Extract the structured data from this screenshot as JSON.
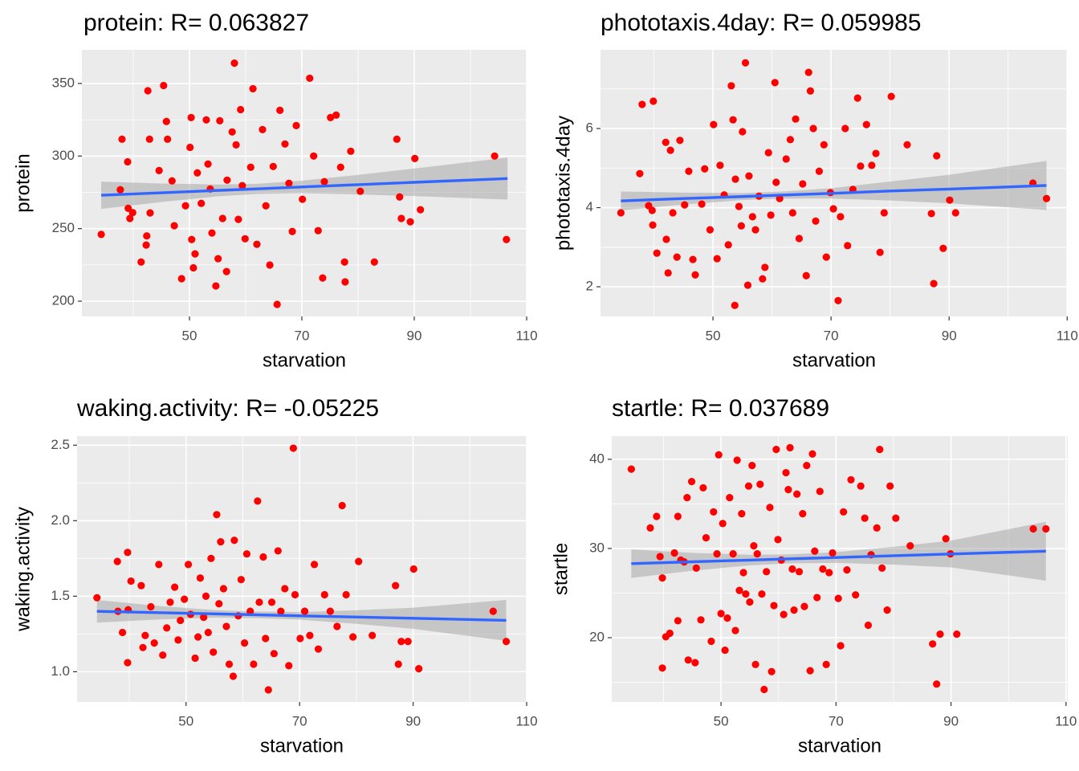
{
  "chart_data": [
    {
      "type": "scatter",
      "title": "protein: R= 0.063827",
      "xlabel": "starvation",
      "ylabel": "protein",
      "color": "#ff0000",
      "xlim": [
        30.86,
        110
      ],
      "xticks": [
        50,
        70,
        90,
        110
      ],
      "ylim": [
        189.5,
        373.2
      ],
      "yticks": [
        200,
        250,
        300,
        350
      ],
      "grid": true,
      "x": [
        34.3,
        37.7,
        38,
        39,
        39.1,
        39.4,
        39.9,
        41.4,
        42.3,
        42.4,
        42.6,
        42.9,
        43,
        44.6,
        45.4,
        45.9,
        46.1,
        46.9,
        47.3,
        48.6,
        49.3,
        50.1,
        50.3,
        50.4,
        51,
        50.7,
        51.4,
        52.1,
        53,
        53.3,
        53.7,
        54,
        54.7,
        55.1,
        55.4,
        55.9,
        56.6,
        56.7,
        57.6,
        58,
        58.3,
        58.7,
        59.1,
        59.4,
        59.9,
        60.9,
        61.3,
        62,
        63,
        63.6,
        64.3,
        64.9,
        65.6,
        66.1,
        67,
        67.7,
        68.3,
        69,
        70.1,
        71.4,
        72.1,
        72.9,
        73.7,
        74,
        75.1,
        76.1,
        76.9,
        77.6,
        77.7,
        78.7,
        80.4,
        82.9,
        86.9,
        87.4,
        87.7,
        89.3,
        90.1,
        91.1,
        104.3,
        106.4
      ],
      "values": [
        246,
        276.8,
        311.6,
        296,
        264,
        257,
        261,
        227,
        238.7,
        245,
        345,
        311.6,
        260.8,
        290,
        348.6,
        323.8,
        311.6,
        282.9,
        252,
        215.5,
        265.7,
        306,
        326.5,
        242.5,
        232.6,
        223,
        288.4,
        267.4,
        324.9,
        294.5,
        277.3,
        247,
        210.5,
        229.3,
        324.3,
        257,
        220.4,
        283.4,
        316.6,
        364,
        307.7,
        256.4,
        332,
        279.6,
        243,
        292.3,
        346.4,
        239.2,
        318.2,
        265.7,
        224.9,
        292.8,
        197.8,
        331.5,
        308.3,
        281.2,
        248,
        321,
        270.2,
        353.6,
        300,
        248.6,
        216,
        282.3,
        326.5,
        328.2,
        292.3,
        227,
        213.3,
        303.3,
        275.7,
        227,
        311.6,
        271.8,
        257,
        254.7,
        298.3,
        263,
        300,
        242.5
      ],
      "fit": {
        "color": "#3366ff",
        "band_color": "#999999",
        "x": [
          34.3,
          45,
          55,
          62,
          70,
          80,
          90,
          106.6
        ],
        "values": [
          273,
          274.7,
          276.3,
          277.4,
          278.7,
          280.3,
          281.9,
          284.5
        ],
        "lower": [
          263.6,
          268.3,
          272.2,
          273.9,
          274.4,
          273.6,
          272.4,
          270
        ],
        "upper": [
          282.4,
          281.1,
          280.4,
          280.9,
          283,
          287,
          291.4,
          299
        ]
      }
    },
    {
      "type": "scatter",
      "title": "phototaxis.4day: R= 0.059985",
      "xlabel": "starvation",
      "ylabel": "phototaxis.4day",
      "color": "#ff0000",
      "xlim": [
        30.95,
        110.1
      ],
      "xticks": [
        50,
        70,
        90,
        110
      ],
      "ylim": [
        1.25,
        7.99
      ],
      "yticks": [
        2,
        4,
        6
      ],
      "grid": true,
      "x": [
        34.4,
        37.6,
        38,
        39.1,
        39.7,
        39.8,
        39.9,
        40.5,
        42,
        42.1,
        42.4,
        42.8,
        43.2,
        43.9,
        44.4,
        45.2,
        45.9,
        46.6,
        47,
        48.1,
        48.6,
        49.5,
        50.1,
        50.7,
        51.2,
        51.9,
        52.6,
        53.1,
        53.4,
        53.8,
        53.7,
        54.4,
        54.8,
        55,
        55.5,
        55.9,
        56.1,
        56.7,
        57.2,
        57.8,
        58.4,
        58.8,
        59.4,
        59.8,
        60.5,
        60.7,
        61.3,
        62.4,
        63.1,
        63.5,
        64,
        64.6,
        65.2,
        65.8,
        66.2,
        66.5,
        67,
        67.4,
        68,
        68.8,
        69.2,
        69.9,
        70.4,
        71.2,
        71.6,
        72.4,
        72.8,
        73.7,
        74.5,
        75,
        76,
        76.9,
        77.6,
        78.3,
        79,
        80.2,
        82.9,
        87,
        87.4,
        87.9,
        89,
        90.1,
        91.1,
        104.2,
        106.5
      ],
      "values": [
        3.87,
        4.86,
        6.61,
        4.05,
        3.93,
        3.56,
        6.69,
        2.85,
        5.65,
        3.2,
        2.35,
        5.45,
        3.87,
        2.75,
        5.7,
        4.07,
        4.92,
        2.69,
        2.3,
        4.09,
        4.98,
        3.44,
        6.1,
        2.71,
        5.07,
        4.32,
        3.06,
        7.08,
        6.22,
        4.72,
        1.53,
        4.03,
        3.54,
        5.92,
        7.66,
        2.04,
        4.8,
        3.77,
        3.44,
        4.29,
        2.2,
        2.49,
        5.39,
        3.81,
        7.16,
        4.64,
        4.23,
        5.23,
        5.72,
        3.87,
        6.24,
        3.22,
        4.6,
        2.28,
        7.42,
        6.95,
        6,
        3.66,
        4.92,
        5.59,
        2.75,
        4.38,
        3.97,
        1.65,
        3.77,
        6,
        3.04,
        4.46,
        6.77,
        5.05,
        6.1,
        5.07,
        5.37,
        2.87,
        3.87,
        6.81,
        5.59,
        3.85,
        2.08,
        5.31,
        2.97,
        4.19,
        3.87,
        4.62,
        4.23
      ],
      "fit": {
        "color": "#3366ff",
        "band_color": "#999999",
        "x": [
          34.4,
          45,
          55,
          62,
          70,
          80,
          90,
          106.5
        ],
        "values": [
          4.17,
          4.23,
          4.28,
          4.32,
          4.36,
          4.42,
          4.47,
          4.56
        ],
        "lower": [
          3.93,
          4.08,
          4.19,
          4.23,
          4.23,
          4.18,
          4.11,
          3.94
        ],
        "upper": [
          4.41,
          4.38,
          4.37,
          4.41,
          4.49,
          4.66,
          4.83,
          5.18
        ]
      }
    },
    {
      "type": "scatter",
      "title": "waking.activity: R= -0.05225",
      "xlabel": "starvation",
      "ylabel": "waking.activity",
      "color": "#ff0000",
      "xlim": [
        30.8,
        110
      ],
      "xticks": [
        50,
        70,
        90,
        110
      ],
      "ylim": [
        0.8,
        2.56
      ],
      "yticks": [
        {
          "value": 1,
          "label": "1.0"
        },
        1.5,
        {
          "value": 2,
          "label": "2.0"
        },
        2.5
      ],
      "grid": true,
      "x": [
        34.3,
        37.9,
        38,
        38.8,
        39.7,
        39.8,
        39.7,
        40.3,
        42.1,
        42.4,
        42.8,
        43.8,
        44.4,
        45.2,
        45.9,
        46.6,
        47.2,
        48,
        48.6,
        49,
        49.7,
        50.4,
        50.8,
        51.6,
        52.1,
        52.5,
        53.1,
        53.5,
        53.9,
        54.4,
        54.8,
        55.4,
        55.8,
        56.1,
        56.6,
        57.1,
        57.6,
        58.3,
        58.5,
        59.2,
        59.7,
        60.3,
        60.7,
        61.3,
        61.9,
        62.6,
        62.9,
        63.6,
        64,
        64.5,
        65.1,
        65.5,
        66.2,
        66.7,
        67.4,
        68.1,
        68.9,
        69.2,
        70.1,
        70.9,
        71.8,
        72.6,
        73.3,
        74.4,
        75.4,
        76.6,
        77.5,
        78.2,
        79.4,
        80.4,
        82.8,
        86.9,
        87.4,
        87.9,
        89.1,
        90.1,
        91,
        104.1,
        106.4
      ],
      "values": [
        1.49,
        1.73,
        1.4,
        1.26,
        1.79,
        1.41,
        1.06,
        1.6,
        1.57,
        1.16,
        1.24,
        1.43,
        1.19,
        1.71,
        1.11,
        1.29,
        1.46,
        1.56,
        1.21,
        1.34,
        1.48,
        1.71,
        1.38,
        1.09,
        1.23,
        1.62,
        1.36,
        1.5,
        1.26,
        1.75,
        1.13,
        2.04,
        1.45,
        1.86,
        1.55,
        1.3,
        1.05,
        0.97,
        1.87,
        1.37,
        1.61,
        1.19,
        1.78,
        1.4,
        1.05,
        2.13,
        1.46,
        1.76,
        1.22,
        0.88,
        1.46,
        1.12,
        1.8,
        1.4,
        1.55,
        1.04,
        2.48,
        1.51,
        1.22,
        1.4,
        1.24,
        1.71,
        1.15,
        1.51,
        1.4,
        1.3,
        2.1,
        1.51,
        1.23,
        1.73,
        1.24,
        1.57,
        1.05,
        1.2,
        1.2,
        1.68,
        1.02,
        1.4,
        1.2
      ],
      "fit": {
        "color": "#3366ff",
        "band_color": "#999999",
        "x": [
          34.3,
          45,
          55,
          62,
          70,
          80,
          90,
          106.4
        ],
        "values": [
          1.4,
          1.391,
          1.383,
          1.377,
          1.37,
          1.362,
          1.354,
          1.34
        ],
        "lower": [
          1.325,
          1.346,
          1.358,
          1.355,
          1.345,
          1.317,
          1.284,
          1.205
        ],
        "upper": [
          1.475,
          1.436,
          1.408,
          1.399,
          1.395,
          1.407,
          1.424,
          1.475
        ]
      }
    },
    {
      "type": "scatter",
      "title": "startle: R= 0.037689",
      "xlabel": "starvation",
      "ylabel": "startle",
      "color": "#ff0000",
      "xlim": [
        31,
        110.3
      ],
      "xticks": [
        50,
        70,
        90,
        110
      ],
      "ylim": [
        12.8,
        42.6
      ],
      "yticks": [
        20,
        30,
        40
      ],
      "grid": true,
      "x": [
        34.4,
        37.7,
        38.8,
        39.4,
        39.8,
        39.8,
        40.4,
        41.1,
        41.9,
        42.5,
        42.5,
        43,
        43.6,
        44.1,
        44.3,
        44.9,
        45.5,
        45.7,
        46.5,
        46.9,
        47.4,
        48.3,
        48.7,
        49.3,
        49.6,
        50,
        50.3,
        50.7,
        51.1,
        51.5,
        52.1,
        52.5,
        52.8,
        53.2,
        53.6,
        53.9,
        54.3,
        54.8,
        55,
        55.4,
        55.7,
        56,
        56.3,
        56.8,
        57.1,
        57.5,
        57.9,
        58.5,
        58.8,
        59.2,
        59.6,
        59.9,
        60.5,
        60.9,
        61.3,
        61.7,
        62,
        62.4,
        62.7,
        63.2,
        63.6,
        64.2,
        64.5,
        64.9,
        65.5,
        65.9,
        66.3,
        66.7,
        67.2,
        67.7,
        68.3,
        68.8,
        69.4,
        70.4,
        70.8,
        71.3,
        71.9,
        72.6,
        73.4,
        74.3,
        75,
        75.6,
        76.1,
        77.1,
        77.6,
        78,
        78.9,
        79.4,
        80.4,
        82.9,
        86.8,
        87.5,
        88.1,
        89.1,
        89.9,
        91,
        104.3,
        106.5
      ],
      "values": [
        38.9,
        32.3,
        33.6,
        29.1,
        26.7,
        16.6,
        20.1,
        20.5,
        29.5,
        33.6,
        21.9,
        28.7,
        28.5,
        35.7,
        17.5,
        37.5,
        17.2,
        27.8,
        22,
        36.8,
        31.2,
        19.6,
        34.1,
        29.4,
        40.5,
        22.7,
        32.8,
        18.6,
        22.2,
        35.7,
        29.4,
        20.8,
        39.9,
        25.3,
        33.9,
        27.3,
        24.9,
        37,
        24,
        39.3,
        30.3,
        17,
        29.4,
        37.2,
        24.9,
        14.2,
        27.4,
        34.6,
        16.2,
        23.6,
        41.1,
        31,
        28.7,
        22.6,
        38.5,
        36.6,
        41.3,
        27.7,
        23.1,
        36.1,
        27.4,
        33.9,
        23.5,
        39.3,
        16.3,
        40.6,
        29.7,
        24.5,
        36.4,
        27.7,
        17,
        27.3,
        29.5,
        24.4,
        19.1,
        34.1,
        27.6,
        37.7,
        24.8,
        37,
        33.4,
        21.4,
        29.3,
        32.3,
        41.1,
        27.8,
        23.1,
        37,
        33.4,
        30.3,
        19.3,
        14.8,
        20.4,
        31.1,
        29.4,
        20.4,
        32.2,
        32.2
      ],
      "fit": {
        "color": "#3366ff",
        "band_color": "#999999",
        "x": [
          34.4,
          45,
          55,
          62,
          70,
          80,
          90,
          106.5
        ],
        "values": [
          28.3,
          28.51,
          28.7,
          28.84,
          28.99,
          29.19,
          29.38,
          29.7
        ],
        "lower": [
          26.7,
          27.51,
          28.1,
          28.34,
          28.39,
          28.19,
          27.88,
          26.4
        ],
        "upper": [
          29.9,
          29.51,
          29.3,
          29.34,
          29.59,
          30.19,
          30.88,
          33
        ]
      }
    }
  ]
}
